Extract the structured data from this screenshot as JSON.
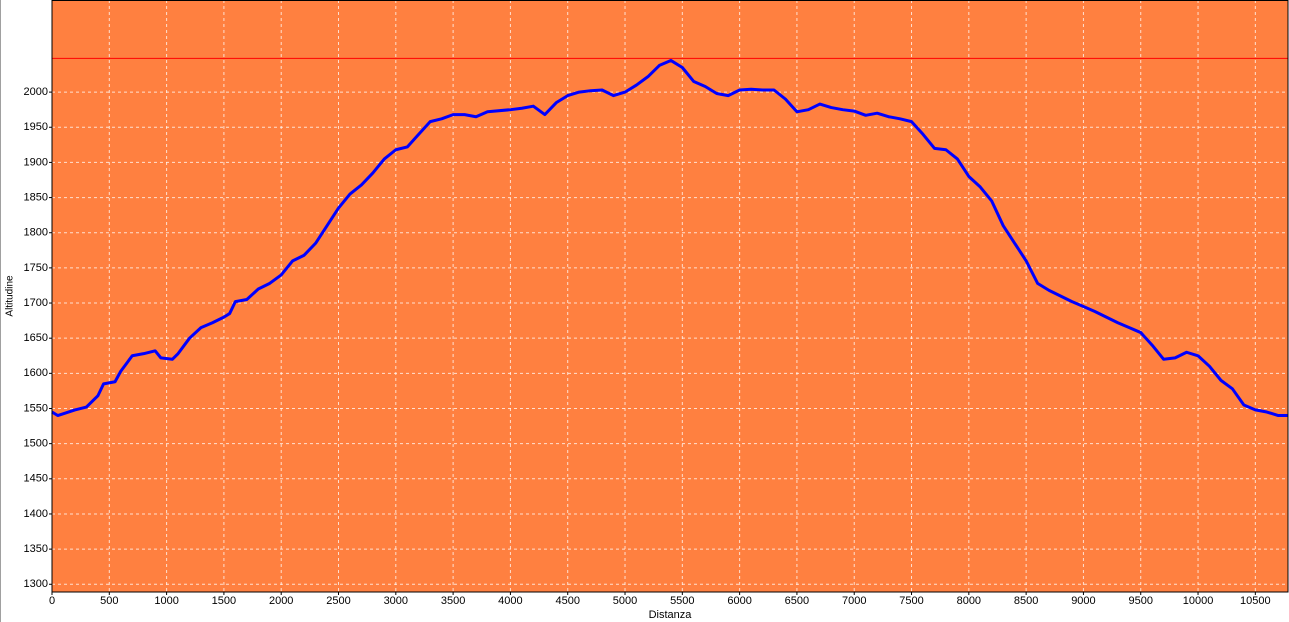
{
  "chart_data": {
    "type": "line",
    "x_label": "Distanza",
    "y_label": "Altitudine",
    "x": [
      0,
      50,
      200,
      300,
      400,
      450,
      550,
      600,
      700,
      800,
      900,
      950,
      1050,
      1100,
      1200,
      1300,
      1400,
      1500,
      1550,
      1600,
      1700,
      1800,
      1900,
      2000,
      2100,
      2200,
      2300,
      2400,
      2500,
      2600,
      2700,
      2800,
      2900,
      3000,
      3100,
      3200,
      3300,
      3400,
      3500,
      3600,
      3700,
      3800,
      4000,
      4100,
      4200,
      4300,
      4400,
      4500,
      4600,
      4700,
      4800,
      4900,
      5000,
      5100,
      5200,
      5300,
      5400,
      5500,
      5600,
      5700,
      5800,
      5900,
      6000,
      6100,
      6200,
      6300,
      6400,
      6500,
      6600,
      6700,
      6800,
      6900,
      7000,
      7100,
      7200,
      7300,
      7400,
      7500,
      7600,
      7700,
      7800,
      7900,
      8000,
      8100,
      8200,
      8300,
      8400,
      8500,
      8600,
      8700,
      8800,
      8900,
      9000,
      9100,
      9200,
      9300,
      9400,
      9500,
      9600,
      9700,
      9800,
      9900,
      10000,
      10100,
      10200,
      10300,
      10400,
      10500,
      10600,
      10700,
      10780
    ],
    "series": [
      {
        "name": "Altitudine",
        "color": "#0000ff",
        "values": [
          1545,
          1540,
          1548,
          1552,
          1568,
          1585,
          1588,
          1603,
          1625,
          1628,
          1632,
          1622,
          1620,
          1628,
          1650,
          1665,
          1672,
          1680,
          1685,
          1702,
          1705,
          1720,
          1728,
          1740,
          1760,
          1768,
          1785,
          1810,
          1835,
          1855,
          1868,
          1885,
          1905,
          1918,
          1922,
          1940,
          1958,
          1962,
          1968,
          1968,
          1965,
          1972,
          1975,
          1977,
          1980,
          1968,
          1985,
          1995,
          2000,
          2002,
          2003,
          1995,
          2000,
          2010,
          2022,
          2038,
          2045,
          2035,
          2015,
          2008,
          1998,
          1995,
          2003,
          2004,
          2003,
          2003,
          1990,
          1972,
          1975,
          1983,
          1978,
          1975,
          1973,
          1967,
          1970,
          1965,
          1962,
          1958,
          1940,
          1920,
          1918,
          1905,
          1880,
          1865,
          1845,
          1810,
          1785,
          1760,
          1728,
          1718,
          1710,
          1702,
          1695,
          1688,
          1680,
          1672,
          1665,
          1658,
          1640,
          1620,
          1622,
          1630,
          1625,
          1610,
          1590,
          1578,
          1555,
          1548,
          1545,
          1540,
          1540
        ]
      }
    ],
    "max_line": {
      "value": 2048,
      "color": "#ff0000"
    },
    "background": "#ff8040",
    "xlim": [
      0,
      10785
    ],
    "ylim": [
      1289,
      2131
    ],
    "xticks": [
      0,
      500,
      1000,
      1500,
      2000,
      2500,
      3000,
      3500,
      4000,
      4500,
      5000,
      5500,
      6000,
      6500,
      7000,
      7500,
      8000,
      8500,
      9000,
      9500,
      10000,
      10500
    ],
    "yticks": [
      1300,
      1350,
      1400,
      1450,
      1500,
      1550,
      1600,
      1650,
      1700,
      1750,
      1800,
      1850,
      1900,
      1950,
      2000
    ],
    "grid": true
  }
}
